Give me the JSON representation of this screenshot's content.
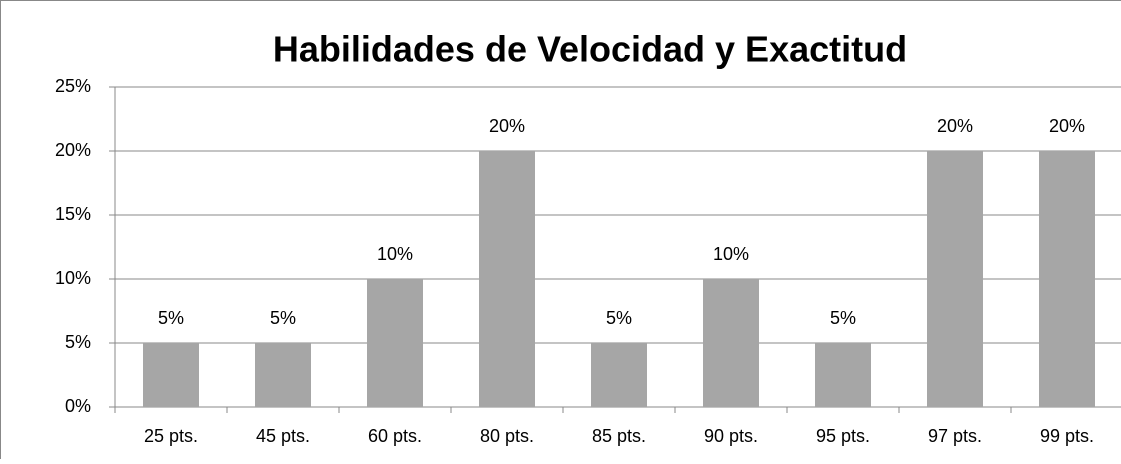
{
  "chart_data": {
    "type": "bar",
    "title": "Habilidades de Velocidad y Exactitud",
    "categories": [
      "25 pts.",
      "45 pts.",
      "60 pts.",
      "80 pts.",
      "85 pts.",
      "90 pts.",
      "95 pts.",
      "97 pts.",
      "99 pts."
    ],
    "values": [
      5,
      5,
      10,
      20,
      5,
      10,
      5,
      20,
      20
    ],
    "value_labels": [
      "5%",
      "5%",
      "10%",
      "20%",
      "5%",
      "10%",
      "5%",
      "20%",
      "20%"
    ],
    "color": "#a6a6a6",
    "ylim": [
      0,
      25
    ],
    "yticks": [
      {
        "value": 0,
        "label": "0%"
      },
      {
        "value": 5,
        "label": "5%"
      },
      {
        "value": 10,
        "label": "10%"
      },
      {
        "value": 15,
        "label": "15%"
      },
      {
        "value": 20,
        "label": "20%"
      },
      {
        "value": 25,
        "label": "25%"
      }
    ],
    "grid": true
  }
}
